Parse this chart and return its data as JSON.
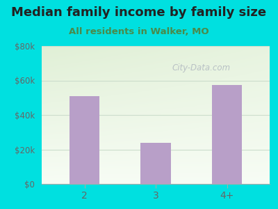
{
  "title": "Median family income by family size",
  "subtitle": "All residents in Walker, MO",
  "categories": [
    "2",
    "3",
    "4+"
  ],
  "values": [
    51000,
    24000,
    57500
  ],
  "bar_color": "#b89fc8",
  "background_outer": "#00e0e0",
  "title_color": "#222222",
  "subtitle_color": "#4a8a4a",
  "tick_label_color": "#666666",
  "grid_color": "#ccddcc",
  "ylim": [
    0,
    80000
  ],
  "yticks": [
    0,
    20000,
    40000,
    60000,
    80000
  ],
  "ytick_labels": [
    "$0",
    "$20k",
    "$40k",
    "$60k",
    "$80k"
  ],
  "title_fontsize": 13,
  "subtitle_fontsize": 9.5,
  "watermark": "City-Data.com"
}
